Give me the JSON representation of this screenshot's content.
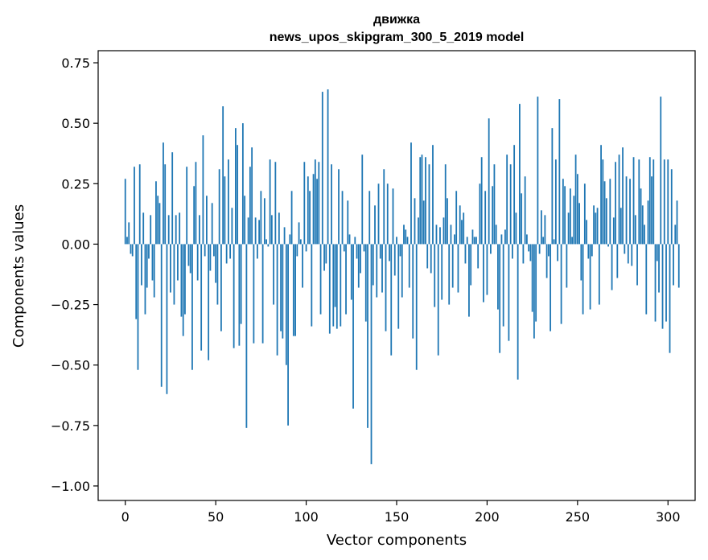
{
  "chart_data": {
    "type": "bar",
    "title_line1": "движка",
    "title_line2": "news_upos_skipgram_300_5_2019 model",
    "xlabel": "Vector components",
    "ylabel": "Components values",
    "xlim": [
      -15,
      315
    ],
    "ylim": [
      -1.06,
      0.8
    ],
    "xticks": [
      0,
      50,
      100,
      150,
      200,
      250,
      300
    ],
    "yticks": [
      0.75,
      0.5,
      0.25,
      0.0,
      -0.25,
      -0.5,
      -0.75,
      -1.0
    ],
    "ytick_labels": [
      "0.75",
      "0.50",
      "0.25",
      "0.00",
      "−0.25",
      "−0.50",
      "−0.75",
      "−1.00"
    ],
    "bar_color": "#1f77b4",
    "grid": false,
    "values": [
      0.27,
      0.03,
      0.09,
      -0.04,
      -0.05,
      0.32,
      -0.31,
      -0.52,
      0.33,
      -0.17,
      0.13,
      -0.29,
      -0.18,
      -0.06,
      0.12,
      -0.15,
      -0.22,
      0.26,
      0.2,
      0.17,
      -0.59,
      0.42,
      0.33,
      -0.62,
      0.12,
      -0.2,
      0.38,
      -0.25,
      0.12,
      -0.15,
      0.13,
      -0.3,
      -0.38,
      -0.29,
      0.32,
      -0.09,
      -0.12,
      -0.52,
      0.24,
      0.34,
      -0.15,
      0.12,
      -0.44,
      0.45,
      -0.05,
      0.2,
      -0.48,
      -0.11,
      0.17,
      -0.05,
      -0.16,
      -0.25,
      0.31,
      -0.36,
      0.57,
      0.28,
      -0.08,
      0.35,
      -0.06,
      0.15,
      -0.43,
      0.48,
      0.41,
      -0.42,
      -0.33,
      0.5,
      0.2,
      -0.76,
      0.11,
      0.32,
      0.4,
      -0.41,
      0.11,
      -0.06,
      0.1,
      0.22,
      -0.41,
      0.19,
      0.02,
      -0.01,
      0.35,
      0.12,
      -0.25,
      0.34,
      -0.46,
      0.13,
      -0.36,
      -0.39,
      0.07,
      -0.5,
      -0.75,
      0.04,
      0.22,
      -0.38,
      -0.38,
      -0.05,
      0.09,
      0.02,
      -0.18,
      0.34,
      -0.03,
      0.28,
      0.22,
      -0.34,
      0.29,
      0.35,
      0.27,
      0.34,
      -0.29,
      0.63,
      -0.11,
      -0.08,
      0.64,
      -0.37,
      0.33,
      -0.34,
      -0.26,
      -0.35,
      0.31,
      -0.34,
      0.22,
      -0.03,
      -0.29,
      0.18,
      0.04,
      -0.23,
      -0.68,
      0.03,
      -0.06,
      -0.18,
      -0.12,
      0.37,
      -0.03,
      -0.32,
      -0.76,
      0.22,
      -0.91,
      -0.17,
      0.16,
      -0.22,
      0.25,
      -0.06,
      -0.2,
      0.31,
      -0.36,
      0.25,
      -0.07,
      -0.46,
      0.23,
      -0.13,
      0.03,
      -0.35,
      -0.05,
      -0.22,
      0.08,
      0.06,
      0.03,
      -0.18,
      0.42,
      -0.39,
      0.19,
      -0.52,
      0.11,
      0.36,
      0.37,
      0.18,
      0.36,
      -0.1,
      0.33,
      -0.12,
      0.41,
      -0.26,
      0.08,
      -0.46,
      0.07,
      -0.23,
      0.11,
      0.33,
      0.19,
      -0.25,
      0.08,
      -0.18,
      0.04,
      0.22,
      -0.2,
      0.16,
      0.1,
      0.13,
      -0.08,
      0.03,
      -0.3,
      -0.17,
      0.06,
      0.03,
      0.03,
      -0.1,
      0.25,
      0.36,
      -0.24,
      0.22,
      -0.21,
      0.52,
      -0.04,
      0.24,
      0.33,
      0.08,
      -0.27,
      -0.45,
      0.04,
      -0.34,
      0.06,
      0.37,
      -0.4,
      0.33,
      -0.06,
      0.41,
      0.13,
      -0.56,
      0.58,
      0.21,
      -0.08,
      0.28,
      0.04,
      -0.03,
      -0.07,
      -0.28,
      -0.39,
      -0.32,
      0.61,
      -0.04,
      0.14,
      0.03,
      0.12,
      -0.14,
      -0.05,
      -0.36,
      0.48,
      0.02,
      0.35,
      -0.07,
      0.6,
      -0.33,
      0.27,
      0.24,
      -0.18,
      0.13,
      0.23,
      0.03,
      0.2,
      0.37,
      0.29,
      0.17,
      -0.15,
      -0.29,
      0.25,
      0.1,
      -0.06,
      -0.27,
      -0.05,
      0.16,
      0.13,
      0.15,
      -0.25,
      0.41,
      0.35,
      0.26,
      0.19,
      -0.01,
      0.27,
      -0.19,
      0.11,
      0.34,
      -0.14,
      0.37,
      0.15,
      0.4,
      -0.04,
      0.28,
      -0.08,
      0.27,
      -0.09,
      0.36,
      0.12,
      -0.17,
      0.35,
      0.23,
      0.16,
      0.08,
      -0.29,
      0.18,
      0.36,
      0.28,
      0.35,
      -0.32,
      -0.07,
      -0.2,
      0.61,
      -0.35,
      0.35,
      -0.32,
      0.35,
      -0.45,
      0.31,
      -0.17,
      0.08,
      0.18,
      -0.18
    ]
  }
}
